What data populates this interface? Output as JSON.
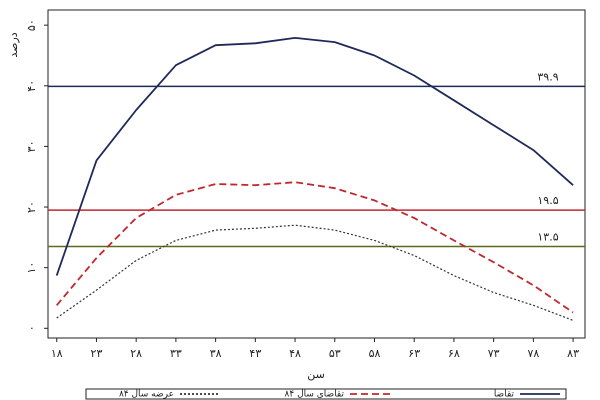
{
  "chart_data": {
    "type": "line",
    "y_label": "درصد",
    "x_label": "سن",
    "x": [
      18,
      23,
      28,
      33,
      38,
      43,
      48,
      53,
      58,
      63,
      68,
      73,
      78,
      83
    ],
    "series": [
      {
        "name": "تقاضا",
        "color": "#1f2a5a",
        "style": "solid",
        "values": [
          8.7,
          27.7,
          36,
          43.4,
          46.7,
          47,
          47.9,
          47.2,
          45,
          41.7,
          37.6,
          33.5,
          29.4,
          23.6
        ]
      },
      {
        "name": "تقاضای سال ۸۴",
        "color": "#c0282d",
        "style": "dashed",
        "values": [
          3.8,
          11.6,
          18.2,
          22,
          23.8,
          23.6,
          24.1,
          23.1,
          21.1,
          18.2,
          14.5,
          10.9,
          7.1,
          2.6
        ]
      },
      {
        "name": "عرضه سال ۸۴",
        "color": "#333333",
        "style": "dotted",
        "values": [
          1.7,
          6.3,
          11.2,
          14.5,
          16.2,
          16.5,
          17,
          16.2,
          14.5,
          12,
          8.7,
          5.9,
          3.8,
          1.3
        ]
      }
    ],
    "hlines": [
      {
        "value": 39.9,
        "label": "۳۹.۹",
        "color": "#1f2a5a"
      },
      {
        "value": 19.5,
        "label": "۱۹.۵",
        "color": "#c0282d"
      },
      {
        "value": 13.5,
        "label": "۱۳.۵",
        "color": "#5a6a1a"
      }
    ],
    "xlim": [
      16.9,
      84.5
    ],
    "ylim": [
      -1.6,
      52.5
    ],
    "xticks": [
      {
        "value": 18,
        "label": "۱۸"
      },
      {
        "value": 23,
        "label": "۲۳"
      },
      {
        "value": 28,
        "label": "۲۸"
      },
      {
        "value": 33,
        "label": "۳۳"
      },
      {
        "value": 38,
        "label": "۳۸"
      },
      {
        "value": 43,
        "label": "۴۳"
      },
      {
        "value": 48,
        "label": "۴۸"
      },
      {
        "value": 53,
        "label": "۵۳"
      },
      {
        "value": 58,
        "label": "۵۸"
      },
      {
        "value": 63,
        "label": "۶۳"
      },
      {
        "value": 68,
        "label": "۶۸"
      },
      {
        "value": 73,
        "label": "۷۳"
      },
      {
        "value": 78,
        "label": "۷۸"
      },
      {
        "value": 83,
        "label": "۸۳"
      }
    ],
    "yticks": [
      {
        "value": 0,
        "label": "۰"
      },
      {
        "value": 10,
        "label": "۱۰"
      },
      {
        "value": 20,
        "label": "۲۰"
      },
      {
        "value": 30,
        "label": "۳۰"
      },
      {
        "value": 40,
        "label": "۴۰"
      },
      {
        "value": 50,
        "label": "۵۰"
      }
    ]
  }
}
